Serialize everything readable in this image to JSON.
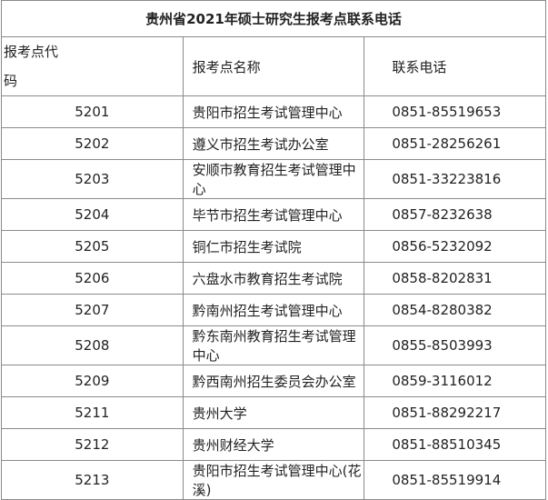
{
  "title": "贵州省2021年硕士研究生报考点联系电话",
  "table": {
    "header": [
      "报考点代码",
      "报考点名称",
      "联系电话"
    ],
    "rows": [
      [
        "5201",
        "贵阳市招生考试管理中心",
        "0851-85519653"
      ],
      [
        "5202",
        "遵义市招生考试办公室",
        "0851-28256261"
      ],
      [
        "5203",
        "安顺市教育招生考试管理中心",
        "0851-33223816"
      ],
      [
        "5204",
        "毕节市招生考试管理中心",
        "0857-8232638"
      ],
      [
        "5205",
        "铜仁市招生考试院",
        "0856-5232092"
      ],
      [
        "5206",
        "六盘水市教育招生考试院",
        "0858-8202831"
      ],
      [
        "5207",
        "黔南州招生考试管理中心",
        "0854-8280382"
      ],
      [
        "5208",
        "黔东南州教育招生考试管理中心",
        "0855-8503993"
      ],
      [
        "5209",
        "黔西南州招生委员会办公室",
        "0859-3116012"
      ],
      [
        "5211",
        "贵州大学",
        "0851-88292217"
      ],
      [
        "5212",
        "贵州财经大学",
        "0851-88510345"
      ],
      [
        "5213",
        "贵阳市招生考试管理中心(花溪)",
        "0851-85519914"
      ]
    ]
  }
}
